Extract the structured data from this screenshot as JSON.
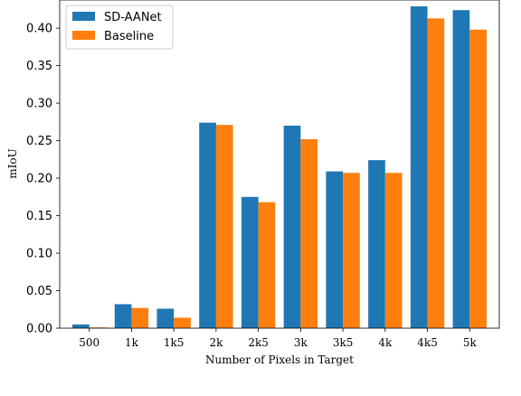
{
  "chart_data": {
    "type": "bar",
    "title": "",
    "xlabel": "Number of Pixels in Target",
    "ylabel": "mIoU",
    "categories": [
      "500",
      "1k",
      "1k5",
      "2k",
      "2k5",
      "3k",
      "3k5",
      "4k",
      "4k5",
      "5k"
    ],
    "series": [
      {
        "name": "SD-AANet",
        "color": "#1f77b4",
        "values": [
          0.005,
          0.032,
          0.026,
          0.274,
          0.175,
          0.27,
          0.209,
          0.224,
          0.429,
          0.424
        ]
      },
      {
        "name": "Baseline",
        "color": "#ff7f0e",
        "values": [
          0.001,
          0.027,
          0.014,
          0.271,
          0.168,
          0.252,
          0.207,
          0.207,
          0.413,
          0.398
        ]
      }
    ],
    "ylim": [
      0,
      0.4375
    ],
    "yticks": [
      "0.00",
      "0.05",
      "0.10",
      "0.15",
      "0.20",
      "0.25",
      "0.30",
      "0.35",
      "0.40"
    ],
    "grid": false,
    "legend": "top-left"
  }
}
